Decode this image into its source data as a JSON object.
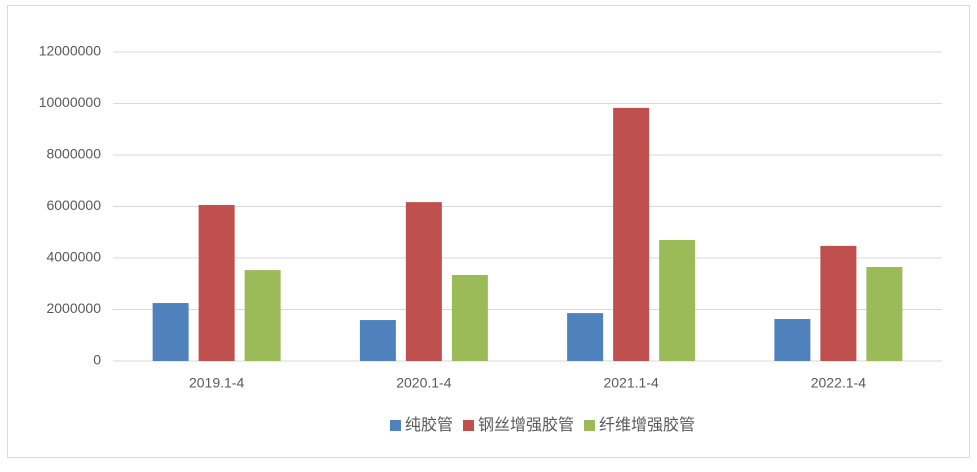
{
  "chart_data": {
    "type": "bar",
    "categories": [
      "2019.1-4",
      "2020.1-4",
      "2021.1-4",
      "2022.1-4"
    ],
    "series": [
      {
        "name": "纯胶管",
        "color": "#4f81bd",
        "values": [
          2250000,
          1590000,
          1860000,
          1630000
        ]
      },
      {
        "name": "钢丝增强胶管",
        "color": "#c0504d",
        "values": [
          6060000,
          6170000,
          9830000,
          4470000
        ]
      },
      {
        "name": "纤维增强胶管",
        "color": "#9bbb59",
        "values": [
          3530000,
          3340000,
          4700000,
          3650000
        ]
      }
    ],
    "ylim": [
      0,
      12000000
    ],
    "yticks": [
      0,
      2000000,
      4000000,
      6000000,
      8000000,
      10000000,
      12000000
    ],
    "grid": true,
    "legend": "bottom"
  }
}
